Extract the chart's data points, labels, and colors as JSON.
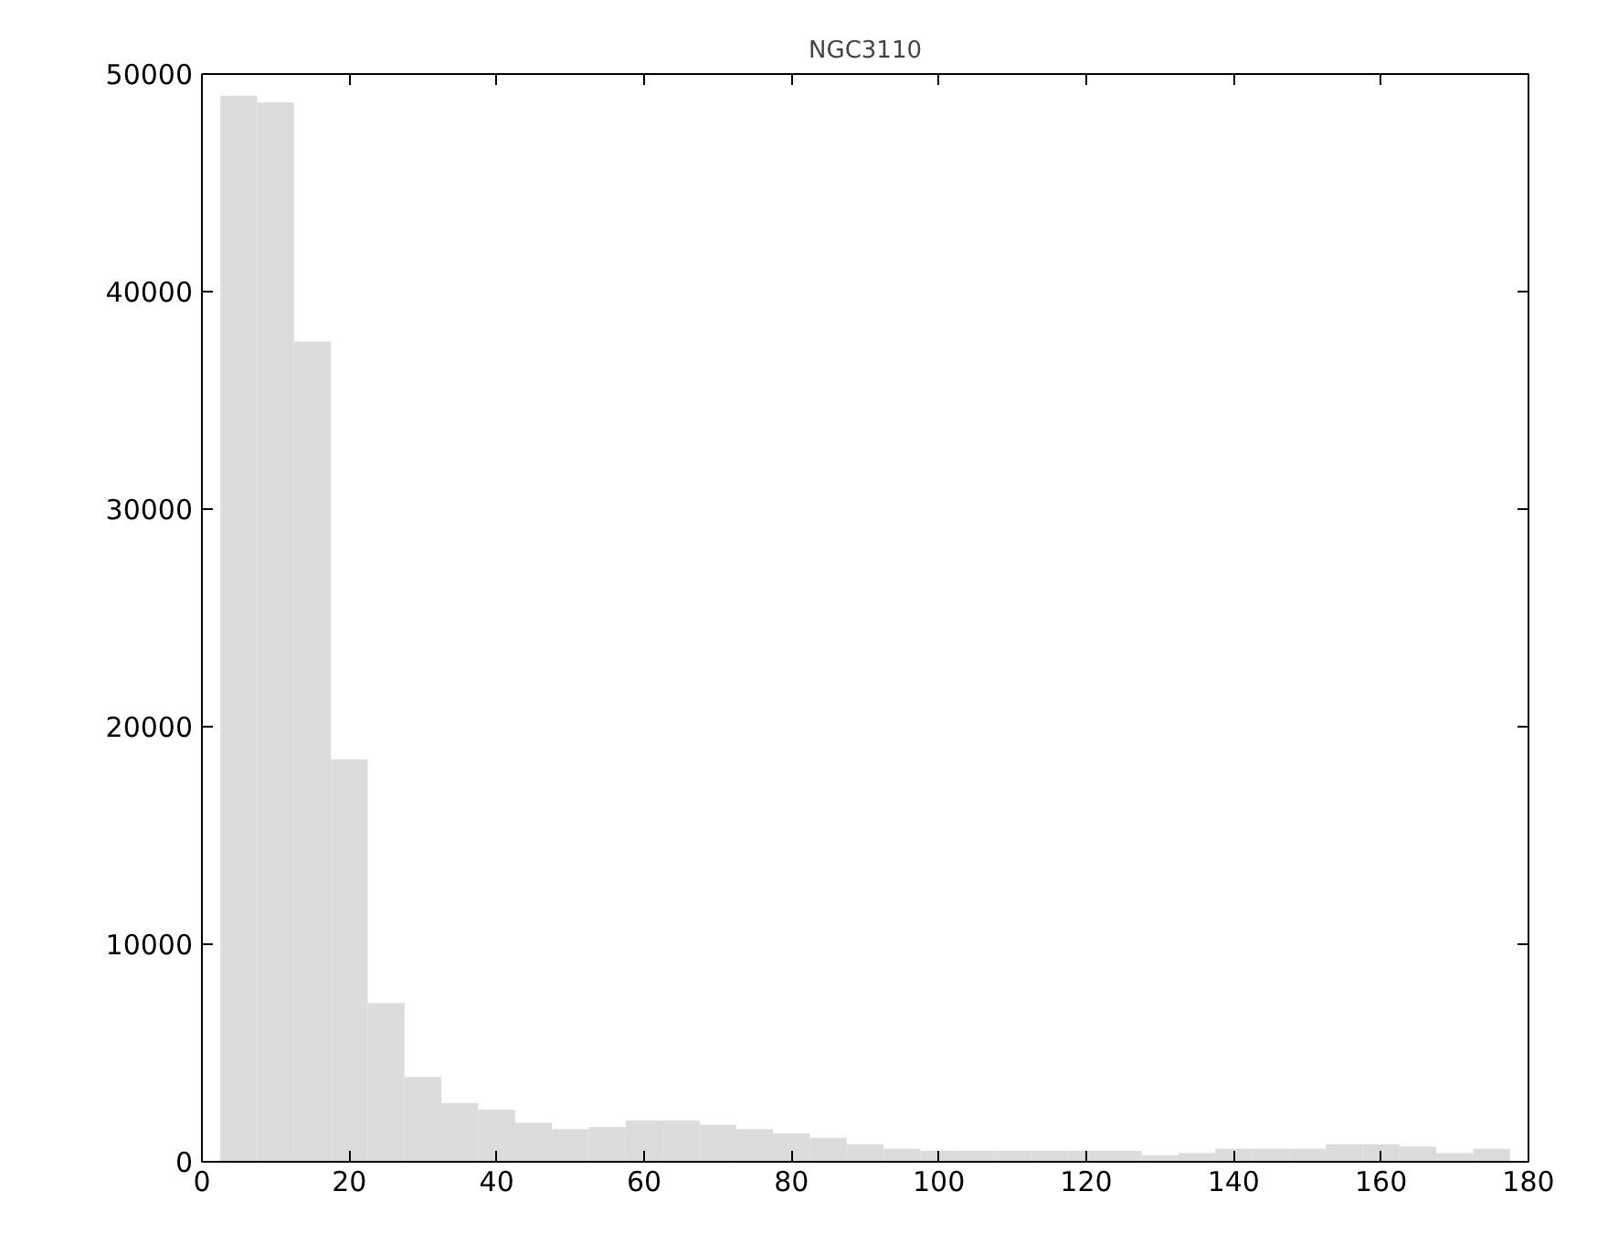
{
  "chart_data": {
    "type": "histogram",
    "title": "NGC3110",
    "bins": [
      2.5,
      7.5,
      12.5,
      17.5,
      22.5,
      27.5,
      32.5,
      37.5,
      42.5,
      47.5,
      52.5,
      57.5,
      62.5,
      67.5,
      72.5,
      77.5,
      82.5,
      87.5,
      92.5,
      97.5,
      102.5,
      107.5,
      112.5,
      117.5,
      122.5,
      127.5,
      132.5,
      137.5,
      142.5,
      147.5,
      152.5,
      157.5,
      162.5,
      167.5,
      172.5,
      177.5
    ],
    "values": [
      49000,
      48700,
      37700,
      18500,
      7300,
      3900,
      2700,
      2400,
      1800,
      1500,
      1600,
      1900,
      1900,
      1700,
      1500,
      1300,
      1100,
      800,
      600,
      500,
      500,
      500,
      500,
      500,
      500,
      300,
      400,
      600,
      600,
      600,
      800,
      800,
      700,
      400,
      600
    ],
    "color": "#dcdcdc",
    "xlim": [
      0,
      180
    ],
    "xticks": [
      0,
      20,
      40,
      60,
      80,
      100,
      120,
      140,
      160,
      180
    ],
    "ylim": [
      0,
      50000
    ],
    "yticks": [
      0,
      10000,
      20000,
      30000,
      40000,
      50000
    ],
    "grid": false
  }
}
